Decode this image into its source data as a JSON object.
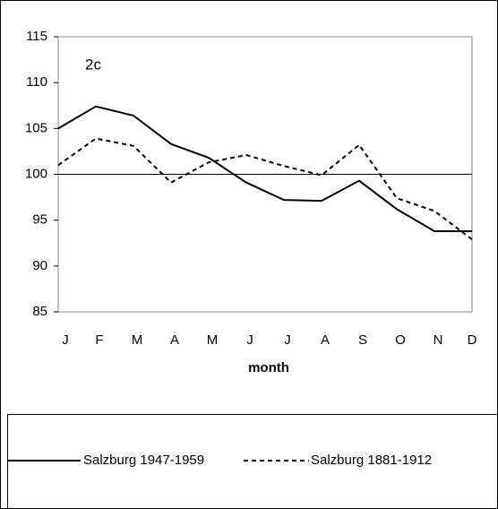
{
  "chart_data": {
    "type": "line",
    "annotation": "2c",
    "x_label": "month",
    "categories": [
      "J",
      "F",
      "M",
      "A",
      "M",
      "J",
      "J",
      "A",
      "S",
      "O",
      "N",
      "D"
    ],
    "series": [
      {
        "name": "Salzburg 1947-1959",
        "color": "#000000",
        "dash": "solid",
        "values": [
          105,
          107.4,
          106.4,
          103.3,
          101.8,
          99.1,
          97.2,
          97.1,
          99.3,
          96.2,
          93.8,
          93.8
        ]
      },
      {
        "name": "Salzburg 1881-1912",
        "color": "#000000",
        "dash": "dashed",
        "values": [
          101,
          103.9,
          103.1,
          99.1,
          101.3,
          102.1,
          100.9,
          99.9,
          103.2,
          97.4,
          96.0,
          92.9
        ]
      }
    ],
    "ylim": [
      85,
      115
    ],
    "yticks": [
      85,
      90,
      95,
      100,
      105,
      110,
      115
    ],
    "reference_line": 100,
    "grid": false
  }
}
